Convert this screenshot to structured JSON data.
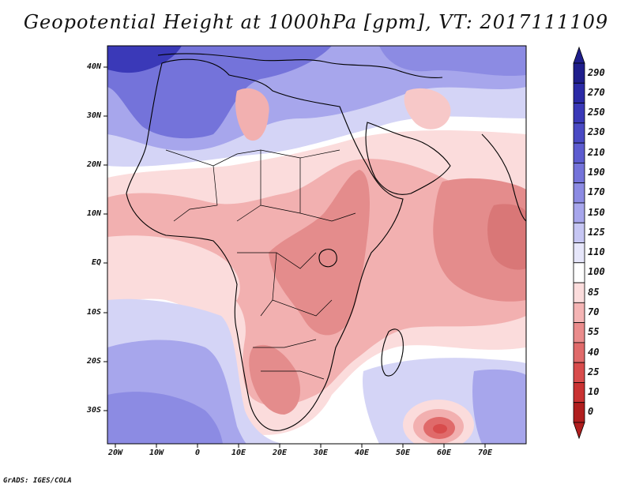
{
  "title": "Geopotential Height at 1000hPa [gpm], VT: 2017111109",
  "credit": "GrADS: IGES/COLA",
  "lat_labels": [
    "40N",
    "30N",
    "20N",
    "10N",
    "EQ",
    "10S",
    "20S",
    "30S"
  ],
  "lon_labels": [
    "20W",
    "10W",
    "0",
    "10E",
    "20E",
    "30E",
    "40E",
    "50E",
    "60E",
    "70E"
  ],
  "colorbar": {
    "levels": [
      "290",
      "270",
      "250",
      "230",
      "210",
      "190",
      "170",
      "150",
      "125",
      "110",
      "100",
      "85",
      "70",
      "55",
      "40",
      "25",
      "10",
      "0"
    ],
    "colors_top_to_bottom": [
      "#1f1e8c",
      "#2b2aa6",
      "#3a39b8",
      "#4a4ac4",
      "#5d5cd0",
      "#7473da",
      "#8c8be3",
      "#a7a6ec",
      "#c6c6f3",
      "#e6e6fa",
      "#ffffff",
      "#fbdcdc",
      "#f4b4b4",
      "#ea8c8c",
      "#e06a6a",
      "#d84c4c",
      "#c93232",
      "#b01e1e"
    ]
  },
  "field_colors": {
    "blue_deep": "#3a39b8",
    "blue_mid": "#7473da",
    "blue_light": "#a7a6ec",
    "blue_pale": "#d4d4f6",
    "white": "#ffffff",
    "red_pale": "#fbdcdc",
    "red_light": "#f2b0b0",
    "red_mid": "#e48c8c",
    "red_deep": "#d94e4e",
    "land_line": "#000000"
  }
}
